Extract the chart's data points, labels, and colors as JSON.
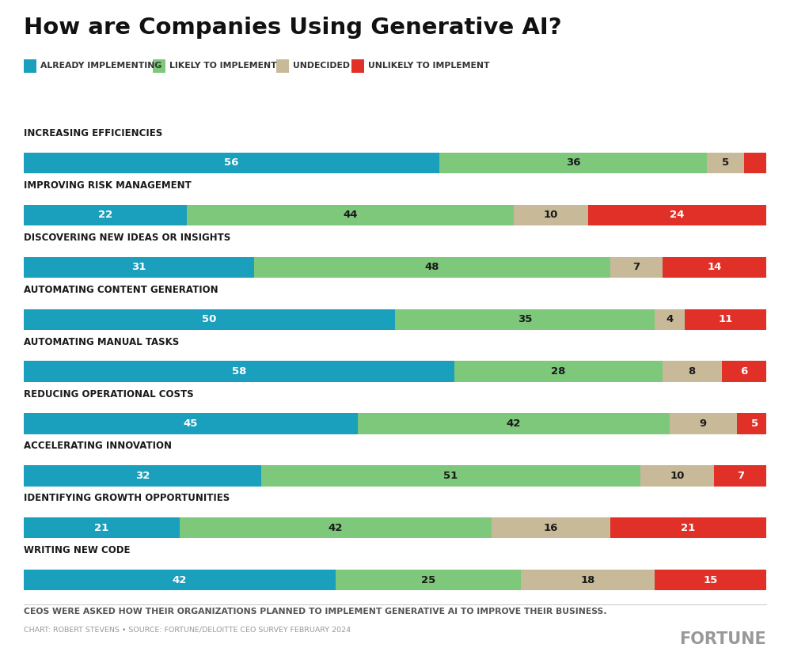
{
  "title": "How are Companies Using Generative AI?",
  "categories": [
    "INCREASING EFFICIENCIES",
    "IMPROVING RISK MANAGEMENT",
    "DISCOVERING NEW IDEAS OR INSIGHTS",
    "AUTOMATING CONTENT GENERATION",
    "AUTOMATING MANUAL TASKS",
    "REDUCING OPERATIONAL COSTS",
    "ACCELERATING INNOVATION",
    "IDENTIFYING GROWTH OPPORTUNITIES",
    "WRITING NEW CODE"
  ],
  "already_implementing": [
    56,
    22,
    31,
    50,
    58,
    45,
    32,
    21,
    42
  ],
  "likely_to_implement": [
    36,
    44,
    48,
    35,
    28,
    42,
    51,
    42,
    25
  ],
  "undecided": [
    5,
    10,
    7,
    4,
    8,
    9,
    10,
    16,
    18
  ],
  "unlikely_to_implement": [
    3,
    24,
    14,
    11,
    6,
    5,
    7,
    21,
    15
  ],
  "colors": {
    "already_implementing": "#1a9fbc",
    "likely_to_implement": "#7dc87a",
    "undecided": "#c8ba99",
    "unlikely_to_implement": "#e03028"
  },
  "legend_labels": [
    "ALREADY IMPLEMENTING",
    "LIKELY TO IMPLEMENT",
    "UNDECIDED",
    "UNLIKELY TO IMPLEMENT"
  ],
  "footnote": "CEOS WERE ASKED HOW THEIR ORGANIZATIONS PLANNED TO IMPLEMENT GENERATIVE AI TO IMPROVE THEIR BUSINESS.",
  "source": "CHART: ROBERT STEVENS • SOURCE: FORTUNE/DELOITTE CEO SURVEY FEBRUARY 2024",
  "fortune_text": "FORTUNE",
  "background_color": "#ffffff"
}
